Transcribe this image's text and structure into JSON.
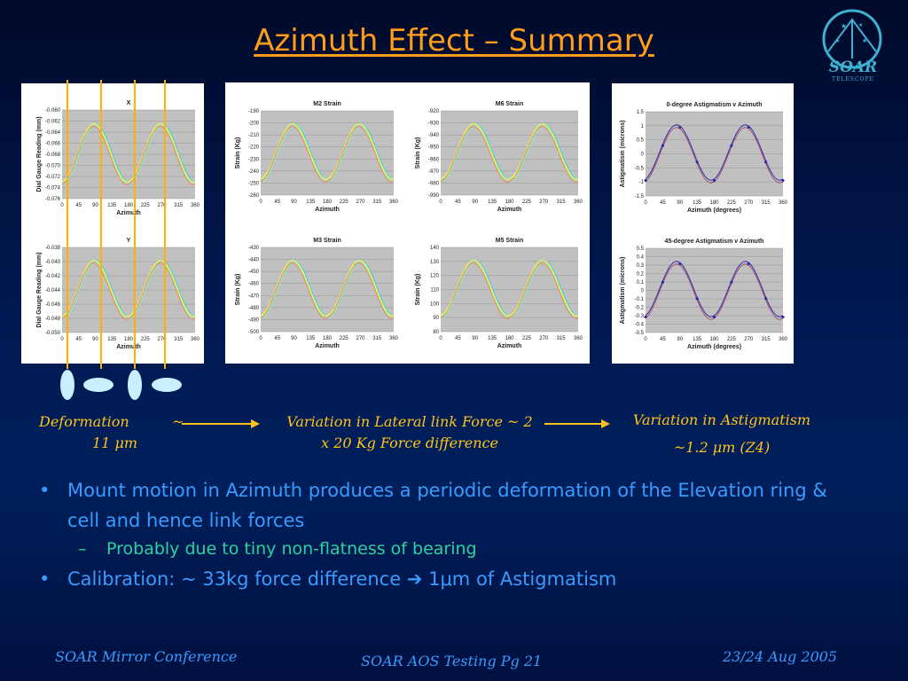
{
  "slide": {
    "title": "Azimuth Effect – Summary",
    "logo": {
      "text": "SOAR",
      "subtext": "TELESCOPE"
    }
  },
  "panels": {
    "dial": [
      {
        "title": "X",
        "ylabel": "Dial Gauge Reading (mm)",
        "xlabel": "Azimuth",
        "yticks": [
          "-0.060",
          "-0.062",
          "-0.064",
          "-0.066",
          "-0.068",
          "-0.070",
          "-0.072",
          "-0.074",
          "-0.076"
        ]
      },
      {
        "title": "Y",
        "ylabel": "Dial Gauge Reading (mm)",
        "xlabel": "Azimuth",
        "yticks": [
          "-0.038",
          "-0.040",
          "-0.042",
          "-0.044",
          "-0.046",
          "-0.048",
          "-0.050"
        ]
      }
    ],
    "strain": [
      {
        "title": "M2 Strain",
        "ylabel": "Strain (Kg)",
        "xlabel": "Azimuth",
        "yticks": [
          "-190",
          "-200",
          "-210",
          "-220",
          "-230",
          "-240",
          "-250",
          "-260"
        ]
      },
      {
        "title": "M6 Strain",
        "ylabel": "Strain (Kg)",
        "xlabel": "Azimuth",
        "yticks": [
          "-920",
          "-930",
          "-940",
          "-950",
          "-960",
          "-970",
          "-980",
          "-990"
        ]
      },
      {
        "title": "M3 Strain",
        "ylabel": "Strain (Kg)",
        "xlabel": "Azimuth",
        "yticks": [
          "-430",
          "-440",
          "-450",
          "-460",
          "-470",
          "-480",
          "-490",
          "-500"
        ]
      },
      {
        "title": "M5 Strain",
        "ylabel": "Strain (Kg)",
        "xlabel": "Azimuth",
        "yticks": [
          "140",
          "130",
          "120",
          "110",
          "100",
          "90",
          "80"
        ]
      }
    ],
    "astig": [
      {
        "title": "0-degree Astigmatism v Azimuth",
        "ylabel": "Astigmatism (microns)",
        "xlabel": "Azimuth (degrees)",
        "yticks": [
          "1.5",
          "1",
          "0.5",
          "0",
          "-0.5",
          "-1",
          "-1.5"
        ]
      },
      {
        "title": "45-degree Astigmatism v Azimuth",
        "ylabel": "Astigmatism (microns)",
        "xlabel": "Azimuth (degrees)",
        "yticks": [
          "0.5",
          "0.4",
          "0.3",
          "0.2",
          "0.1",
          "0",
          "-0.1",
          "-0.2",
          "-0.3",
          "-0.4",
          "-0.5"
        ]
      }
    ],
    "xticks": [
      "0",
      "45",
      "90",
      "135",
      "180",
      "225",
      "270",
      "315",
      "360"
    ]
  },
  "captions": {
    "deformation": "Deformation",
    "deformation_value": "11 μm",
    "tilde": "~",
    "link_force_1": "Variation in Lateral link Force ~ 2",
    "link_force_2": "x 20 Kg Force difference",
    "astig_1": "Variation in Astigmatism",
    "astig_2": "~1.2 μm (Z4)"
  },
  "bullets": [
    {
      "text": "Mount motion in Azimuth produces a periodic deformation of the Elevation ring & cell and hence link forces",
      "sub": "Probably due to tiny non-flatness of bearing"
    },
    {
      "text": "Calibration: ~ 33kg force difference ➔ 1μm of Astigmatism"
    }
  ],
  "footer": {
    "left": "SOAR Mirror Conference",
    "center": "SOAR AOS Testing Pg 21",
    "right": "23/24 Aug 2005"
  },
  "colors": {
    "title": "#ff9c1a",
    "bullet": "#3a9bff",
    "sub": "#2fd0a0",
    "caption": "#ffc21a"
  }
}
